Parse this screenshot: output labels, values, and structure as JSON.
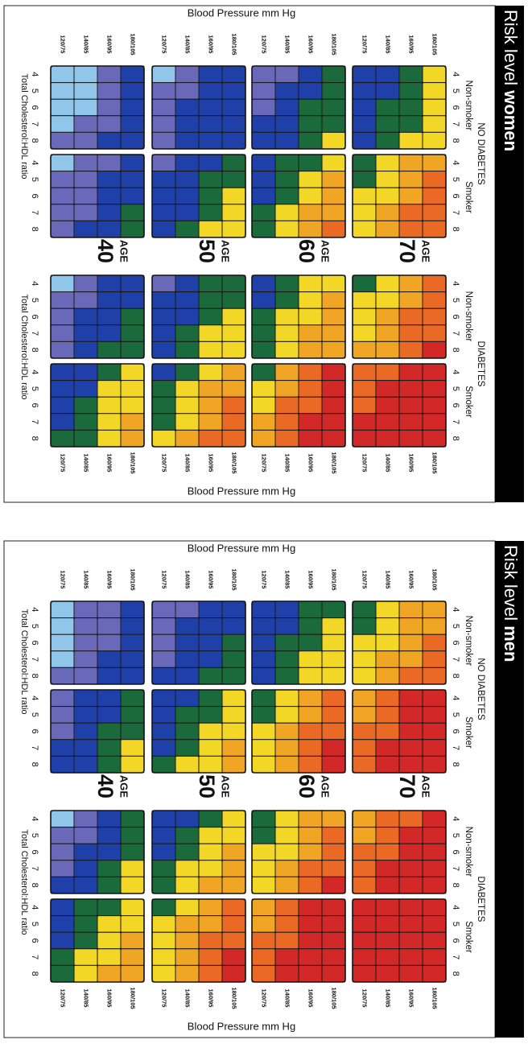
{
  "colors": {
    "1": "#8fc6ea",
    "2": "#6a68b8",
    "3": "#1f40a8",
    "4": "#1b6a3c",
    "5": "#f2d726",
    "6": "#f1a524",
    "7": "#ea6a25",
    "8": "#d22828",
    "band": "#000000"
  },
  "axis_labels": {
    "bp_title": "Blood Pressure mm Hg",
    "chol_title": "Total Cholesterol:HDL ratio",
    "age_label": "AGE"
  },
  "chart_data": [
    {
      "type": "heatmap",
      "title_prefix": "Risk level",
      "title_emphasis": "women",
      "bp_categories": [
        "120/75",
        "140/85",
        "160/95",
        "180/105"
      ],
      "cholesterol_ratio": [
        4,
        5,
        6,
        7,
        8
      ],
      "ages": [
        40,
        50,
        60,
        70
      ],
      "group_titles": [
        "NO DIABETES",
        "DIABETES"
      ],
      "smoking_labels": [
        "Non-smoker",
        "Smoker"
      ],
      "legend": "none",
      "grids": {
        "nodiab_nonsmoker": [
          [
            [
              1,
              1,
              2,
              3
            ],
            [
              1,
              1,
              2,
              3
            ],
            [
              1,
              1,
              2,
              3
            ],
            [
              1,
              2,
              2,
              3
            ],
            [
              2,
              2,
              3,
              3
            ]
          ],
          [
            [
              1,
              2,
              3,
              3
            ],
            [
              2,
              2,
              3,
              3
            ],
            [
              2,
              3,
              3,
              3
            ],
            [
              2,
              3,
              3,
              3
            ],
            [
              2,
              3,
              3,
              3
            ]
          ],
          [
            [
              2,
              2,
              3,
              4
            ],
            [
              2,
              3,
              3,
              4
            ],
            [
              2,
              3,
              4,
              4
            ],
            [
              3,
              3,
              4,
              4
            ],
            [
              3,
              3,
              4,
              5
            ]
          ],
          [
            [
              3,
              3,
              4,
              5
            ],
            [
              3,
              3,
              4,
              5
            ],
            [
              3,
              4,
              4,
              5
            ],
            [
              3,
              4,
              4,
              5
            ],
            [
              3,
              4,
              5,
              5
            ]
          ]
        ],
        "nodiab_smoker": [
          [
            [
              1,
              2,
              2,
              3
            ],
            [
              2,
              2,
              3,
              3
            ],
            [
              2,
              2,
              3,
              3
            ],
            [
              2,
              2,
              3,
              4
            ],
            [
              2,
              3,
              3,
              4
            ]
          ],
          [
            [
              2,
              3,
              3,
              4
            ],
            [
              3,
              3,
              4,
              4
            ],
            [
              3,
              3,
              4,
              5
            ],
            [
              3,
              3,
              4,
              5
            ],
            [
              3,
              4,
              5,
              5
            ]
          ],
          [
            [
              3,
              4,
              4,
              5
            ],
            [
              3,
              4,
              5,
              6
            ],
            [
              3,
              4,
              5,
              6
            ],
            [
              4,
              5,
              6,
              6
            ],
            [
              4,
              5,
              6,
              7
            ]
          ],
          [
            [
              4,
              5,
              6,
              6
            ],
            [
              4,
              5,
              6,
              7
            ],
            [
              5,
              5,
              6,
              7
            ],
            [
              5,
              6,
              7,
              7
            ],
            [
              5,
              6,
              7,
              7
            ]
          ]
        ],
        "diab_nonsmoker": [
          [
            [
              1,
              2,
              3,
              3
            ],
            [
              2,
              2,
              3,
              3
            ],
            [
              2,
              3,
              3,
              4
            ],
            [
              2,
              3,
              3,
              4
            ],
            [
              2,
              3,
              4,
              4
            ]
          ],
          [
            [
              2,
              3,
              4,
              4
            ],
            [
              3,
              3,
              4,
              4
            ],
            [
              3,
              3,
              4,
              5
            ],
            [
              3,
              4,
              5,
              5
            ],
            [
              3,
              4,
              5,
              5
            ]
          ],
          [
            [
              3,
              4,
              5,
              5
            ],
            [
              3,
              4,
              5,
              6
            ],
            [
              4,
              5,
              5,
              6
            ],
            [
              4,
              5,
              6,
              6
            ],
            [
              4,
              5,
              6,
              6
            ]
          ],
          [
            [
              4,
              5,
              6,
              7
            ],
            [
              5,
              5,
              6,
              7
            ],
            [
              5,
              6,
              7,
              7
            ],
            [
              5,
              6,
              7,
              7
            ],
            [
              6,
              6,
              7,
              8
            ]
          ]
        ],
        "diab_smoker": [
          [
            [
              3,
              3,
              4,
              5
            ],
            [
              3,
              3,
              5,
              5
            ],
            [
              3,
              4,
              5,
              5
            ],
            [
              3,
              4,
              5,
              6
            ],
            [
              4,
              4,
              5,
              6
            ]
          ],
          [
            [
              3,
              4,
              5,
              6
            ],
            [
              4,
              5,
              6,
              6
            ],
            [
              4,
              5,
              6,
              7
            ],
            [
              4,
              5,
              6,
              7
            ],
            [
              5,
              6,
              7,
              7
            ]
          ],
          [
            [
              4,
              6,
              7,
              8
            ],
            [
              5,
              6,
              7,
              8
            ],
            [
              5,
              7,
              7,
              8
            ],
            [
              6,
              7,
              8,
              8
            ],
            [
              6,
              7,
              8,
              8
            ]
          ],
          [
            [
              7,
              7,
              8,
              8
            ],
            [
              7,
              8,
              8,
              8
            ],
            [
              7,
              8,
              8,
              8
            ],
            [
              8,
              8,
              8,
              8
            ],
            [
              8,
              8,
              8,
              8
            ]
          ]
        ]
      }
    },
    {
      "type": "heatmap",
      "title_prefix": "Risk level",
      "title_emphasis": "men",
      "bp_categories": [
        "120/75",
        "140/85",
        "160/95",
        "180/105"
      ],
      "cholesterol_ratio": [
        4,
        5,
        6,
        7,
        8
      ],
      "ages": [
        40,
        50,
        60,
        70
      ],
      "group_titles": [
        "NO DIABETES",
        "DIABETES"
      ],
      "smoking_labels": [
        "Non-smoker",
        "Smoker"
      ],
      "legend": "none",
      "grids": {
        "nodiab_nonsmoker": [
          [
            [
              1,
              2,
              2,
              3
            ],
            [
              1,
              2,
              2,
              3
            ],
            [
              1,
              2,
              2,
              3
            ],
            [
              1,
              2,
              3,
              3
            ],
            [
              2,
              2,
              3,
              3
            ]
          ],
          [
            [
              2,
              2,
              3,
              3
            ],
            [
              2,
              3,
              3,
              3
            ],
            [
              2,
              3,
              3,
              4
            ],
            [
              2,
              3,
              3,
              4
            ],
            [
              3,
              3,
              4,
              4
            ]
          ],
          [
            [
              3,
              3,
              4,
              4
            ],
            [
              3,
              3,
              4,
              5
            ],
            [
              3,
              4,
              4,
              5
            ],
            [
              3,
              4,
              5,
              5
            ],
            [
              3,
              4,
              5,
              5
            ]
          ],
          [
            [
              4,
              5,
              6,
              6
            ],
            [
              4,
              5,
              6,
              6
            ],
            [
              5,
              5,
              6,
              7
            ],
            [
              5,
              6,
              6,
              7
            ],
            [
              5,
              6,
              7,
              7
            ]
          ]
        ],
        "nodiab_smoker": [
          [
            [
              2,
              3,
              3,
              4
            ],
            [
              2,
              3,
              3,
              4
            ],
            [
              2,
              3,
              4,
              4
            ],
            [
              3,
              3,
              4,
              5
            ],
            [
              3,
              3,
              4,
              5
            ]
          ],
          [
            [
              3,
              3,
              4,
              5
            ],
            [
              3,
              4,
              4,
              5
            ],
            [
              3,
              4,
              5,
              5
            ],
            [
              3,
              4,
              5,
              6
            ],
            [
              4,
              5,
              5,
              6
            ]
          ],
          [
            [
              4,
              5,
              6,
              7
            ],
            [
              4,
              5,
              6,
              7
            ],
            [
              5,
              6,
              7,
              7
            ],
            [
              5,
              6,
              7,
              8
            ],
            [
              5,
              6,
              7,
              8
            ]
          ],
          [
            [
              6,
              7,
              8,
              8
            ],
            [
              6,
              7,
              8,
              8
            ],
            [
              7,
              7,
              8,
              8
            ],
            [
              7,
              8,
              8,
              8
            ],
            [
              7,
              8,
              8,
              8
            ]
          ]
        ],
        "diab_nonsmoker": [
          [
            [
              1,
              2,
              3,
              4
            ],
            [
              2,
              2,
              3,
              4
            ],
            [
              2,
              3,
              3,
              4
            ],
            [
              2,
              3,
              4,
              5
            ],
            [
              3,
              3,
              4,
              5
            ]
          ],
          [
            [
              3,
              3,
              4,
              5
            ],
            [
              3,
              4,
              5,
              5
            ],
            [
              3,
              4,
              5,
              6
            ],
            [
              4,
              5,
              5,
              6
            ],
            [
              4,
              5,
              6,
              6
            ]
          ],
          [
            [
              4,
              5,
              6,
              6
            ],
            [
              4,
              5,
              6,
              7
            ],
            [
              5,
              5,
              6,
              7
            ],
            [
              5,
              6,
              7,
              7
            ],
            [
              5,
              6,
              7,
              8
            ]
          ],
          [
            [
              6,
              7,
              7,
              8
            ],
            [
              6,
              7,
              8,
              8
            ],
            [
              7,
              7,
              8,
              8
            ],
            [
              7,
              8,
              8,
              8
            ],
            [
              7,
              8,
              8,
              8
            ]
          ]
        ],
        "diab_smoker": [
          [
            [
              3,
              4,
              4,
              5
            ],
            [
              3,
              4,
              5,
              5
            ],
            [
              3,
              4,
              5,
              6
            ],
            [
              4,
              5,
              5,
              6
            ],
            [
              4,
              5,
              6,
              6
            ]
          ],
          [
            [
              4,
              5,
              6,
              7
            ],
            [
              5,
              6,
              6,
              7
            ],
            [
              5,
              6,
              7,
              7
            ],
            [
              5,
              6,
              7,
              8
            ],
            [
              5,
              6,
              7,
              8
            ]
          ],
          [
            [
              6,
              7,
              8,
              8
            ],
            [
              6,
              7,
              8,
              8
            ],
            [
              7,
              7,
              8,
              8
            ],
            [
              7,
              8,
              8,
              8
            ],
            [
              7,
              8,
              8,
              8
            ]
          ],
          [
            [
              8,
              8,
              8,
              8
            ],
            [
              8,
              8,
              8,
              8
            ],
            [
              8,
              8,
              8,
              8
            ],
            [
              8,
              8,
              8,
              8
            ],
            [
              8,
              8,
              8,
              8
            ]
          ]
        ]
      }
    }
  ]
}
